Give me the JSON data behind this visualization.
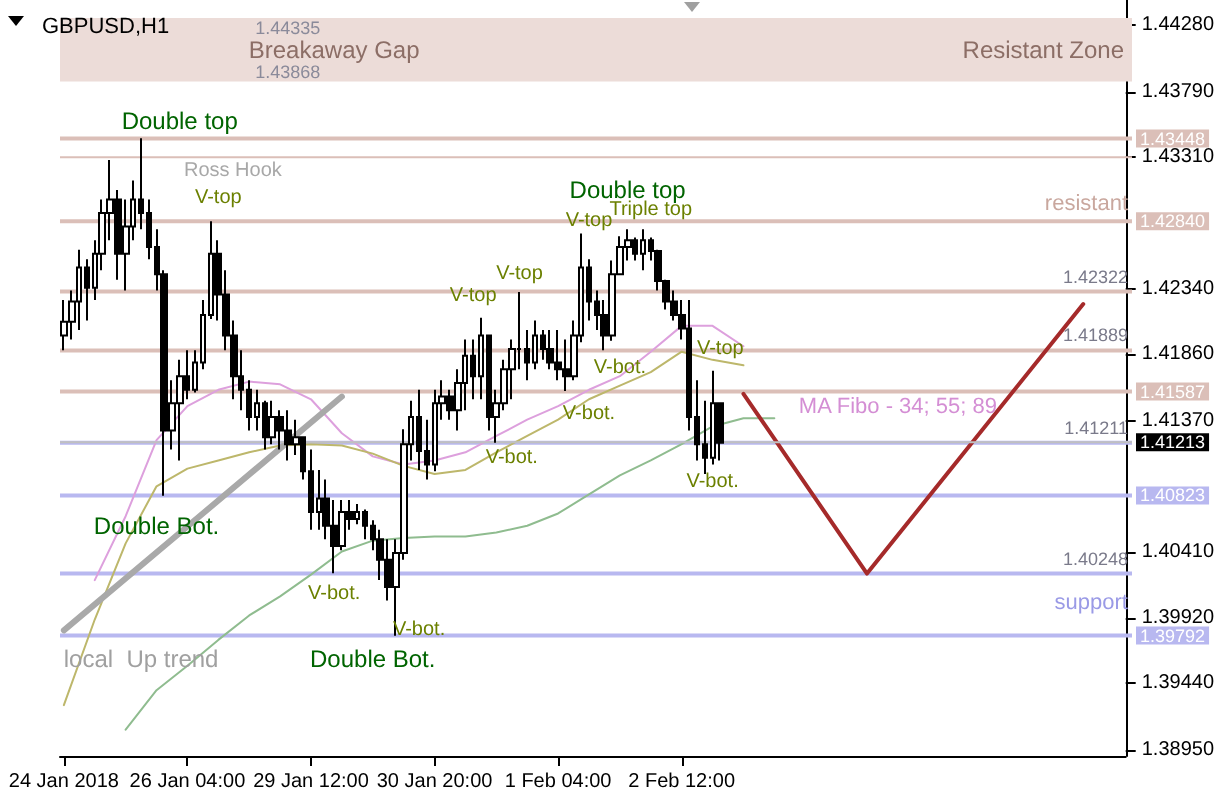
{
  "chart_data": {
    "type": "candlestick",
    "title": "GBPUSD,H1",
    "color": "#000000",
    "categories": [
      "24 Jan 2018",
      null,
      null,
      null,
      null,
      null,
      null,
      null,
      null,
      null,
      null,
      null,
      null,
      null,
      null,
      null,
      "26 Jan 04:00",
      null,
      null,
      null,
      null,
      null,
      null,
      null,
      null,
      null,
      null,
      null,
      null,
      null,
      null,
      null,
      "29 Jan 12:00",
      null,
      null,
      null,
      null,
      null,
      null,
      null,
      null,
      null,
      null,
      null,
      null,
      null,
      null,
      null,
      "30 Jan 20:00",
      null,
      null,
      null,
      null,
      null,
      null,
      null,
      null,
      null,
      null,
      null,
      null,
      null,
      null,
      null,
      "1 Feb 04:00",
      null,
      null,
      null,
      null,
      null,
      null,
      null,
      null,
      null,
      null,
      null,
      null,
      null,
      null,
      null,
      "2 Feb 12:00",
      null,
      null,
      null,
      null,
      null,
      null,
      null,
      null,
      null,
      null,
      null,
      null,
      null,
      null,
      null,
      null,
      null,
      null,
      null,
      null,
      null,
      null,
      null,
      null,
      null,
      null,
      null,
      null,
      null,
      null,
      null,
      null,
      null,
      null,
      null,
      null,
      null,
      null,
      null,
      null,
      null,
      null,
      null,
      null,
      null,
      null,
      null,
      null,
      null,
      null,
      null,
      null,
      null,
      null,
      null,
      null,
      null
    ],
    "ohlc": [
      [
        1.42,
        1.4226,
        1.4189,
        1.421
      ],
      [
        1.421,
        1.4233,
        1.4197,
        1.4225
      ],
      [
        1.4225,
        1.4263,
        1.4204,
        1.425
      ],
      [
        1.425,
        1.4256,
        1.4211,
        1.4235
      ],
      [
        1.4235,
        1.427,
        1.4226,
        1.426
      ],
      [
        1.426,
        1.43,
        1.4248,
        1.429
      ],
      [
        1.429,
        1.4329,
        1.427,
        1.43
      ],
      [
        1.43,
        1.4307,
        1.4241,
        1.426
      ],
      [
        1.426,
        1.43,
        1.4233,
        1.428
      ],
      [
        1.428,
        1.4314,
        1.427,
        1.43
      ],
      [
        1.43,
        1.4345,
        1.4278,
        1.429
      ],
      [
        1.429,
        1.43,
        1.4256,
        1.4265
      ],
      [
        1.4265,
        1.4278,
        1.4233,
        1.4245
      ],
      [
        1.4245,
        1.4248,
        1.4082,
        1.413
      ],
      [
        1.413,
        1.4167,
        1.4116,
        1.415
      ],
      [
        1.415,
        1.4182,
        1.4108,
        1.417
      ],
      [
        1.417,
        1.4189,
        1.4153,
        1.416
      ],
      [
        1.416,
        1.4189,
        1.4158,
        1.418
      ],
      [
        1.418,
        1.4226,
        1.4175,
        1.4215
      ],
      [
        1.4215,
        1.4284,
        1.4212,
        1.426
      ],
      [
        1.426,
        1.427,
        1.4211,
        1.423
      ],
      [
        1.423,
        1.4248,
        1.4189,
        1.42
      ],
      [
        1.42,
        1.4211,
        1.4153,
        1.417
      ],
      [
        1.417,
        1.4189,
        1.4145,
        1.416
      ],
      [
        1.416,
        1.4167,
        1.413,
        1.414
      ],
      [
        1.414,
        1.416,
        1.413,
        1.415
      ],
      [
        1.415,
        1.4152,
        1.4116,
        1.4125
      ],
      [
        1.4125,
        1.4152,
        1.412,
        1.414
      ],
      [
        1.414,
        1.4145,
        1.4116,
        1.413
      ],
      [
        1.413,
        1.4145,
        1.4108,
        1.412
      ],
      [
        1.412,
        1.4138,
        1.4112,
        1.4125
      ],
      [
        1.4125,
        1.4125,
        1.4094,
        1.41
      ],
      [
        1.41,
        1.4116,
        1.4057,
        1.407
      ],
      [
        1.407,
        1.4101,
        1.4057,
        1.408
      ],
      [
        1.408,
        1.4094,
        1.405,
        1.406
      ],
      [
        1.406,
        1.4079,
        1.4025,
        1.4045
      ],
      [
        1.4045,
        1.4079,
        1.4042,
        1.407
      ],
      [
        1.407,
        1.4079,
        1.4057,
        1.4065
      ],
      [
        1.4065,
        1.4076,
        1.4061,
        1.407
      ],
      [
        1.407,
        1.4072,
        1.405,
        1.406
      ],
      [
        1.406,
        1.4064,
        1.4042,
        1.405
      ],
      [
        1.405,
        1.4057,
        1.402,
        1.4035
      ],
      [
        1.4035,
        1.405,
        1.4005,
        1.4015
      ],
      [
        1.4015,
        1.405,
        1.3979,
        1.404
      ],
      [
        1.404,
        1.4131,
        1.4035,
        1.412
      ],
      [
        1.412,
        1.4152,
        1.4108,
        1.414
      ],
      [
        1.414,
        1.416,
        1.4101,
        1.4115
      ],
      [
        1.4115,
        1.4138,
        1.4094,
        1.4105
      ],
      [
        1.4105,
        1.416,
        1.41,
        1.415
      ],
      [
        1.415,
        1.4167,
        1.4138,
        1.4155
      ],
      [
        1.4155,
        1.416,
        1.4138,
        1.4145
      ],
      [
        1.4145,
        1.4175,
        1.413,
        1.4165
      ],
      [
        1.4165,
        1.4197,
        1.4145,
        1.4185
      ],
      [
        1.4185,
        1.4197,
        1.4153,
        1.417
      ],
      [
        1.417,
        1.4213,
        1.4153,
        1.42
      ],
      [
        1.42,
        1.42,
        1.413,
        1.414
      ],
      [
        1.414,
        1.416,
        1.4121,
        1.415
      ],
      [
        1.415,
        1.4182,
        1.4145,
        1.4175
      ],
      [
        1.4175,
        1.4197,
        1.4153,
        1.419
      ],
      [
        1.419,
        1.4232,
        1.4175,
        1.419
      ],
      [
        1.419,
        1.4204,
        1.4167,
        1.418
      ],
      [
        1.418,
        1.4211,
        1.4175,
        1.42
      ],
      [
        1.42,
        1.4204,
        1.4182,
        1.419
      ],
      [
        1.419,
        1.4204,
        1.4175,
        1.418
      ],
      [
        1.418,
        1.4204,
        1.4167,
        1.4175
      ],
      [
        1.4175,
        1.4197,
        1.4159,
        1.417
      ],
      [
        1.417,
        1.4211,
        1.4167,
        1.42
      ],
      [
        1.42,
        1.4275,
        1.4195,
        1.425
      ],
      [
        1.425,
        1.4256,
        1.4211,
        1.4225
      ],
      [
        1.4225,
        1.4233,
        1.4204,
        1.4215
      ],
      [
        1.4215,
        1.4226,
        1.4189,
        1.42
      ],
      [
        1.42,
        1.4255,
        1.4196,
        1.4245
      ],
      [
        1.4245,
        1.4273,
        1.4245,
        1.4265
      ],
      [
        1.4265,
        1.4278,
        1.4255,
        1.427
      ],
      [
        1.427,
        1.4272,
        1.4255,
        1.426
      ],
      [
        1.426,
        1.4278,
        1.4248,
        1.427
      ],
      [
        1.427,
        1.4272,
        1.4255,
        1.4262
      ],
      [
        1.4262,
        1.4263,
        1.4233,
        1.424
      ],
      [
        1.424,
        1.4241,
        1.4219,
        1.4225
      ],
      [
        1.4225,
        1.4233,
        1.4211,
        1.4215
      ],
      [
        1.4215,
        1.4226,
        1.4197,
        1.4205
      ],
      [
        1.4205,
        1.4226,
        1.413,
        1.414
      ],
      [
        1.414,
        1.4167,
        1.4108,
        1.412
      ],
      [
        1.412,
        1.4152,
        1.4098,
        1.411
      ],
      [
        1.411,
        1.4174,
        1.4105,
        1.415
      ],
      [
        1.415,
        1.415,
        1.4108,
        1.4121
      ],
      null,
      null,
      null,
      null,
      null,
      null,
      null,
      null,
      null,
      null,
      null,
      null,
      null,
      null,
      null,
      null,
      null,
      null,
      null,
      null,
      null,
      null,
      null,
      null,
      null,
      null,
      null,
      null,
      null,
      null,
      null,
      null,
      null,
      null,
      null,
      null,
      null,
      null,
      null,
      null,
      null,
      null,
      null,
      null,
      null,
      null,
      null,
      null,
      null,
      null,
      null,
      null
    ],
    "series": [
      {
        "type": "line",
        "color": "#dda0dd",
        "values": [
          null,
          null,
          null,
          null,
          1.402,
          null,
          null,
          null,
          1.4067,
          null,
          null,
          null,
          1.4123,
          null,
          null,
          null,
          1.4148,
          null,
          null,
          null,
          1.416,
          null,
          null,
          null,
          1.4166,
          null,
          null,
          null,
          1.4164,
          null,
          null,
          null,
          1.4153,
          null,
          null,
          null,
          1.4128,
          null,
          null,
          null,
          1.4111,
          null,
          null,
          null,
          1.4105,
          null,
          null,
          null,
          1.4108,
          null,
          null,
          null,
          1.4114,
          null,
          null,
          null,
          1.4126,
          null,
          null,
          null,
          1.4138,
          null,
          null,
          null,
          1.4148,
          null,
          null,
          null,
          1.416,
          null,
          null,
          null,
          1.417,
          null,
          null,
          null,
          1.4188,
          null,
          null,
          null,
          1.4207,
          null,
          null,
          null,
          1.4207,
          null,
          null,
          null,
          1.4192,
          null,
          null,
          null,
          null,
          null,
          null,
          null,
          null,
          null,
          null,
          null,
          null,
          null,
          null,
          null,
          null,
          null,
          null,
          null,
          null,
          null,
          null,
          null,
          null,
          null,
          null,
          null,
          null,
          null,
          null,
          null,
          null,
          null,
          null,
          null,
          null,
          null,
          null,
          null,
          null,
          null,
          null,
          null,
          null,
          null,
          null,
          null,
          null,
          null
        ]
      },
      {
        "type": "line",
        "color": "#bdb76b",
        "values": [
          1.3928,
          null,
          null,
          null,
          1.3991,
          null,
          null,
          null,
          1.4047,
          null,
          null,
          null,
          1.4089,
          null,
          null,
          null,
          1.4102,
          null,
          null,
          null,
          1.4108,
          null,
          null,
          null,
          1.4114,
          null,
          null,
          null,
          1.4119,
          null,
          null,
          null,
          1.412,
          null,
          null,
          null,
          1.4119,
          null,
          null,
          null,
          1.4113,
          null,
          null,
          null,
          1.4104,
          null,
          null,
          null,
          1.4098,
          null,
          null,
          null,
          1.4101,
          null,
          null,
          null,
          1.4114,
          null,
          null,
          null,
          1.4126,
          null,
          null,
          null,
          1.4138,
          null,
          null,
          null,
          1.4153,
          null,
          null,
          null,
          1.4163,
          null,
          null,
          null,
          1.4173,
          null,
          null,
          null,
          1.4188,
          null,
          null,
          null,
          1.4182,
          null,
          null,
          null,
          1.4178,
          null,
          null,
          null,
          null,
          null,
          null,
          null,
          null,
          null,
          null,
          null,
          null,
          null,
          null,
          null,
          null,
          null,
          null,
          null,
          null,
          null,
          null,
          null,
          null,
          null,
          null,
          null,
          null,
          null,
          null,
          null,
          null,
          null,
          null,
          null,
          null,
          null,
          null,
          null,
          null,
          null,
          null,
          null,
          null,
          null,
          null,
          null,
          null,
          null
        ]
      },
      {
        "type": "line",
        "color": "#8fbc8f",
        "values": [
          null,
          null,
          null,
          null,
          null,
          null,
          null,
          null,
          1.391,
          null,
          null,
          null,
          1.3939,
          null,
          null,
          null,
          1.3957,
          null,
          null,
          null,
          1.3976,
          null,
          null,
          null,
          1.3994,
          null,
          null,
          null,
          1.4008,
          null,
          null,
          null,
          1.4024,
          null,
          null,
          null,
          1.4041,
          null,
          null,
          null,
          1.4049,
          null,
          null,
          null,
          1.4051,
          null,
          null,
          null,
          1.4052,
          null,
          null,
          null,
          1.4052,
          null,
          null,
          null,
          1.4055,
          null,
          null,
          null,
          1.406,
          null,
          null,
          null,
          1.4069,
          null,
          null,
          null,
          1.4083,
          null,
          null,
          null,
          1.4097,
          null,
          null,
          null,
          1.4108,
          null,
          null,
          null,
          1.412,
          null,
          null,
          null,
          1.4133,
          null,
          null,
          null,
          1.4139,
          null,
          null,
          null,
          1.4139,
          null,
          null,
          null,
          null,
          null,
          null,
          null,
          null,
          null,
          null,
          null,
          null,
          null,
          null,
          null,
          null,
          null,
          null,
          null,
          null,
          null,
          null,
          null,
          null,
          null,
          null,
          null,
          null,
          null,
          null,
          null,
          null,
          null,
          null,
          null,
          null,
          null,
          null,
          null,
          null,
          null,
          null,
          null,
          null,
          null
        ]
      },
      {
        "type": "line",
        "color": "#a9a9a9",
        "values": [
          1.3983,
          null,
          null,
          null,
          null,
          null,
          null,
          null,
          null,
          null,
          null,
          null,
          null,
          null,
          null,
          null,
          null,
          null,
          null,
          null,
          null,
          null,
          null,
          null,
          null,
          null,
          null,
          null,
          null,
          null,
          null,
          null,
          null,
          null,
          null,
          null,
          1.4155,
          null,
          null,
          null,
          null,
          null,
          null,
          null,
          null,
          null,
          null,
          null,
          null,
          null,
          null,
          null,
          null,
          null,
          null,
          null,
          null,
          null,
          null,
          null,
          null,
          null,
          null,
          null,
          null,
          null,
          null,
          null,
          null,
          null,
          null,
          null,
          null,
          null,
          null,
          null,
          null,
          null,
          null,
          null,
          null,
          null,
          null,
          null,
          null,
          null,
          null,
          null,
          null,
          null,
          null,
          null,
          null,
          null,
          null,
          null,
          null,
          null,
          null,
          null,
          null,
          null,
          null,
          null,
          null,
          null,
          null,
          null,
          null,
          null,
          null,
          null,
          null,
          null,
          null,
          null,
          null,
          null,
          null,
          null,
          null,
          null,
          null,
          null,
          null,
          null,
          null,
          null,
          null,
          null,
          null,
          null,
          null,
          null,
          null,
          null,
          null,
          null
        ]
      },
      {
        "type": "line",
        "color": "#a52a2a",
        "values": [
          null,
          null,
          null,
          null,
          null,
          null,
          null,
          null,
          null,
          null,
          null,
          null,
          null,
          null,
          null,
          null,
          null,
          null,
          null,
          null,
          null,
          null,
          null,
          null,
          null,
          null,
          null,
          null,
          null,
          null,
          null,
          null,
          null,
          null,
          null,
          null,
          null,
          null,
          null,
          null,
          null,
          null,
          null,
          null,
          null,
          null,
          null,
          null,
          null,
          null,
          null,
          null,
          null,
          null,
          null,
          null,
          null,
          null,
          null,
          null,
          null,
          null,
          null,
          null,
          null,
          null,
          null,
          null,
          null,
          null,
          null,
          null,
          null,
          null,
          null,
          null,
          null,
          null,
          null,
          null,
          null,
          null,
          null,
          null,
          null,
          null,
          null,
          null,
          1.4157,
          null,
          null,
          null,
          null,
          null,
          null,
          null,
          null,
          null,
          null,
          null,
          null,
          null,
          null,
          null,
          1.40248,
          null,
          null,
          null,
          null,
          null,
          null,
          null,
          null,
          null,
          null,
          null,
          null,
          null,
          null,
          null,
          null,
          null,
          null,
          null,
          null,
          null,
          null,
          null,
          null,
          null,
          null,
          null,
          1.4223,
          null,
          null,
          null,
          null,
          null
        ]
      }
    ],
    "ylim": [
      1.38906,
      1.44467
    ],
    "yticks": [
      {
        "value": 1.3895,
        "label": "1.38950"
      },
      {
        "value": 1.3944,
        "label": "1.39440"
      },
      {
        "value": 1.3992,
        "label": "1.39920"
      },
      {
        "value": 1.4041,
        "label": "1.40410"
      },
      {
        "value": 1.4137,
        "label": "1.41370"
      },
      {
        "value": 1.4186,
        "label": "1.41860"
      },
      {
        "value": 1.4234,
        "label": "1.42340"
      },
      {
        "value": 1.4331,
        "label": "1.43310"
      },
      {
        "value": 1.4379,
        "label": "1.43790"
      },
      {
        "value": 1.4428,
        "label": "1.44280"
      }
    ],
    "ref_lines": [
      {
        "axis": "y",
        "value": 1.43448,
        "label": "1.43448",
        "color": "#dbbfb8"
      },
      {
        "axis": "y",
        "value": 1.4331,
        "label": "Ross Hook",
        "color": "#dbbfb8"
      },
      {
        "axis": "y",
        "value": 1.4284,
        "label": "1.42840",
        "color": "#dbbfb8"
      },
      {
        "axis": "y",
        "value": 1.42322,
        "label": "1.42322",
        "color": "#dbbfb8"
      },
      {
        "axis": "y",
        "value": 1.41889,
        "label": "1.41889",
        "color": "#dbbfb8"
      },
      {
        "axis": "y",
        "value": 1.41587,
        "label": "1.41587",
        "color": "#dbbfb8"
      },
      {
        "axis": "y",
        "value": 1.41213,
        "label": "1.41213",
        "color": "#c0c0c0"
      },
      {
        "axis": "y",
        "value": 1.41211,
        "label": "1.41211",
        "color": "#b8b8f0"
      },
      {
        "axis": "y",
        "value": 1.40823,
        "label": "1.40823",
        "color": "#b8b8f0"
      },
      {
        "axis": "y",
        "value": 1.40248,
        "label": "1.40248",
        "color": "#b8b8f0"
      },
      {
        "axis": "y",
        "value": 1.39792,
        "label": "1.39792",
        "color": "#b8b8f0"
      }
    ],
    "bands": [
      {
        "axis": "y",
        "from": 1.43868,
        "to": 1.44335,
        "label": "Resistant Zone",
        "color": "#ecdcd8"
      }
    ],
    "annotations": [
      "Double top",
      "V-top",
      "Double Bot.",
      "local  Up trend",
      "V-bot.",
      "V-bot.",
      "Double Bot.",
      "V-top",
      "V-top",
      "V-bot.",
      "V-bot.",
      "V-top",
      "Double top",
      "Triple top",
      "V-bot.",
      "V-top",
      "V-bot.",
      "MA Fibo - 34; 55; 89",
      "resistant",
      "support",
      "Breakaway Gap",
      "1.44335",
      "1.43868"
    ]
  }
}
